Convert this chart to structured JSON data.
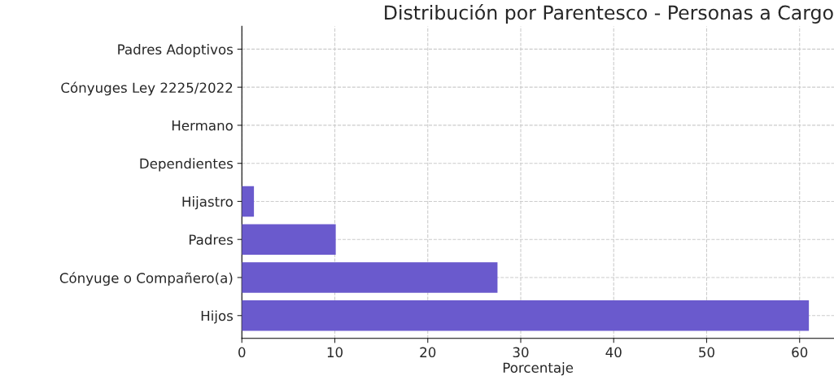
{
  "chart_data": {
    "type": "bar",
    "orientation": "horizontal",
    "title": "Distribución por Parentesco - Personas a Cargo",
    "xlabel": "Porcentaje",
    "categories": [
      "Padres Adoptivos",
      "Cónyuges Ley 2225/2022",
      "Hermano",
      "Dependientes",
      "Hijastro",
      "Padres",
      "Cónyuge o Compañero(a)",
      "Hijos"
    ],
    "values": [
      0,
      0,
      0,
      0,
      1.3,
      10.1,
      27.5,
      61.0
    ],
    "color": "#6a5acd",
    "xlim": [
      0,
      63.7
    ],
    "xticks": [
      0,
      10,
      20,
      30,
      40,
      50,
      60
    ],
    "grid": true,
    "line_style": "dashed"
  }
}
